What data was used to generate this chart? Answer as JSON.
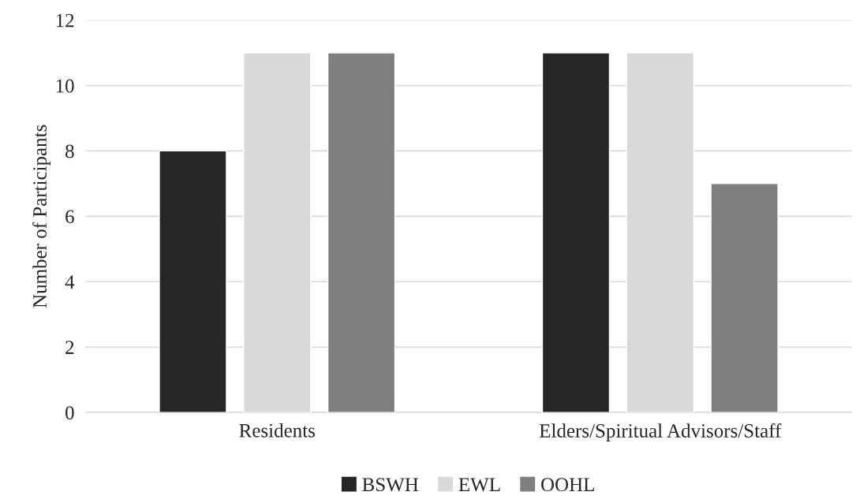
{
  "chart_data": {
    "type": "bar",
    "ylabel": "Number of Participants",
    "categories": [
      "Residents",
      "Elders/Spiritual Advisors/Staff"
    ],
    "series": [
      {
        "name": "BSWH",
        "color": "#262626",
        "values": [
          8,
          11
        ]
      },
      {
        "name": "EWL",
        "color": "#d9d9d9",
        "values": [
          11,
          11
        ]
      },
      {
        "name": "OOHL",
        "color": "#7f7f7f",
        "values": [
          11,
          7
        ]
      }
    ],
    "ylim": [
      0,
      12
    ],
    "yticks": [
      0,
      2,
      4,
      6,
      8,
      10,
      12
    ],
    "grid": "y",
    "legend": "bottom"
  }
}
